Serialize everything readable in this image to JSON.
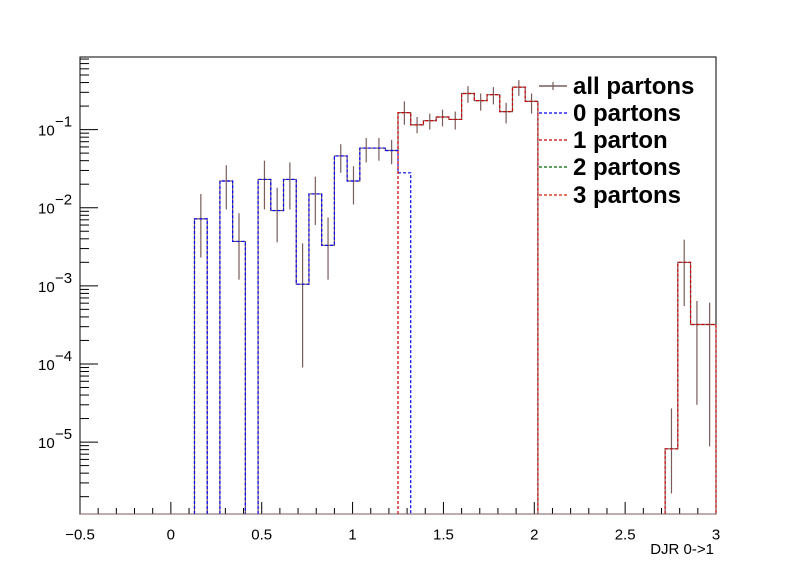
{
  "chart_data": {
    "type": "line",
    "title": "",
    "xlabel": "DJR 0->1",
    "ylabel": "",
    "xlim": [
      -0.5,
      3.0
    ],
    "ylim": [
      1.2e-06,
      0.85
    ],
    "y_log_scale": true,
    "grid": false,
    "legend_position": "top-right",
    "x_tick_labels": [
      "−0.5",
      "0",
      "0.5",
      "1",
      "1.5",
      "2",
      "2.5",
      "3"
    ],
    "y_tick_labels": [
      {
        "base": "10",
        "exp": "−1"
      },
      {
        "base": "10",
        "exp": "−2"
      },
      {
        "base": "10",
        "exp": "−3"
      },
      {
        "base": "10",
        "exp": "−4"
      },
      {
        "base": "10",
        "exp": "−5"
      }
    ],
    "bin_width": 0.07,
    "series": [
      {
        "name": "all partons",
        "color": "#7a5c5c",
        "style": "solid",
        "points": [
          {
            "x": 0.165,
            "y": 0.0072,
            "err": [
              0.0023,
              0.015
            ]
          },
          {
            "x": 0.305,
            "y": 0.022,
            "err": [
              0.0095,
              0.035
            ]
          },
          {
            "x": 0.375,
            "y": 0.0037,
            "err": [
              0.0012,
              0.0085
            ]
          },
          {
            "x": 0.515,
            "y": 0.023,
            "err": [
              0.0095,
              0.04
            ]
          },
          {
            "x": 0.585,
            "y": 0.0092,
            "err": [
              0.0036,
              0.018
            ]
          },
          {
            "x": 0.655,
            "y": 0.023,
            "err": [
              0.0095,
              0.038
            ]
          },
          {
            "x": 0.725,
            "y": 0.00105,
            "err": [
              9e-05,
              0.0035
            ]
          },
          {
            "x": 0.795,
            "y": 0.015,
            "err": [
              0.006,
              0.025
            ]
          },
          {
            "x": 0.865,
            "y": 0.0033,
            "err": [
              0.0012,
              0.0075
            ]
          },
          {
            "x": 0.935,
            "y": 0.046,
            "err": [
              0.028,
              0.065
            ]
          },
          {
            "x": 1.005,
            "y": 0.022,
            "err": [
              0.011,
              0.034
            ]
          },
          {
            "x": 1.075,
            "y": 0.058,
            "err": [
              0.038,
              0.078
            ]
          },
          {
            "x": 1.145,
            "y": 0.058,
            "err": [
              0.04,
              0.078
            ]
          },
          {
            "x": 1.215,
            "y": 0.054,
            "err": [
              0.036,
              0.074
            ]
          },
          {
            "x": 1.285,
            "y": 0.165,
            "err": [
              0.115,
              0.23
            ]
          },
          {
            "x": 1.355,
            "y": 0.115,
            "err": [
              0.09,
              0.145
            ]
          },
          {
            "x": 1.425,
            "y": 0.13,
            "err": [
              0.1,
              0.16
            ]
          },
          {
            "x": 1.495,
            "y": 0.145,
            "err": [
              0.11,
              0.18
            ]
          },
          {
            "x": 1.565,
            "y": 0.135,
            "err": [
              0.1,
              0.17
            ]
          },
          {
            "x": 1.635,
            "y": 0.29,
            "err": [
              0.22,
              0.36
            ]
          },
          {
            "x": 1.705,
            "y": 0.235,
            "err": [
              0.175,
              0.29
            ]
          },
          {
            "x": 1.775,
            "y": 0.28,
            "err": [
              0.21,
              0.35
            ]
          },
          {
            "x": 1.845,
            "y": 0.17,
            "err": [
              0.12,
              0.22
            ]
          },
          {
            "x": 1.915,
            "y": 0.35,
            "err": [
              0.27,
              0.43
            ]
          },
          {
            "x": 1.985,
            "y": 0.23,
            "err": [
              0.16,
              0.29
            ]
          },
          {
            "x": 2.755,
            "y": 8.2e-06,
            "err": [
              2.2e-06,
              2.7e-05
            ]
          },
          {
            "x": 2.825,
            "y": 0.002,
            "err": [
              0.00055,
              0.0039
            ]
          },
          {
            "x": 2.895,
            "y": 0.00032,
            "err": [
              3e-05,
              0.00064
            ]
          },
          {
            "x": 2.965,
            "y": 0.00032,
            "err": [
              8.8e-06,
              0.00061
            ]
          }
        ]
      },
      {
        "name": "0 partons",
        "color": "#0000ff",
        "style": "dashed",
        "points": [
          {
            "x": 0.165,
            "y": 0.0072
          },
          {
            "x": 0.305,
            "y": 0.022
          },
          {
            "x": 0.375,
            "y": 0.0037
          },
          {
            "x": 0.515,
            "y": 0.023
          },
          {
            "x": 0.585,
            "y": 0.0092
          },
          {
            "x": 0.655,
            "y": 0.023
          },
          {
            "x": 0.725,
            "y": 0.00105
          },
          {
            "x": 0.795,
            "y": 0.015
          },
          {
            "x": 0.865,
            "y": 0.0033
          },
          {
            "x": 0.935,
            "y": 0.046
          },
          {
            "x": 1.005,
            "y": 0.022
          },
          {
            "x": 1.075,
            "y": 0.058
          },
          {
            "x": 1.145,
            "y": 0.058
          },
          {
            "x": 1.215,
            "y": 0.054
          },
          {
            "x": 1.285,
            "y": 0.028
          }
        ]
      },
      {
        "name": "1 parton",
        "color": "#cc0000",
        "style": "dashed",
        "points": [
          {
            "x": 1.285,
            "y": 0.165
          },
          {
            "x": 1.355,
            "y": 0.115
          },
          {
            "x": 1.425,
            "y": 0.13
          },
          {
            "x": 1.495,
            "y": 0.145
          },
          {
            "x": 1.565,
            "y": 0.135
          },
          {
            "x": 1.635,
            "y": 0.29
          },
          {
            "x": 1.705,
            "y": 0.235
          },
          {
            "x": 1.775,
            "y": 0.28
          },
          {
            "x": 1.845,
            "y": 0.17
          },
          {
            "x": 1.915,
            "y": 0.35
          },
          {
            "x": 1.985,
            "y": 0.23
          },
          {
            "x": 2.755,
            "y": 8.2e-06
          },
          {
            "x": 2.825,
            "y": 0.002
          },
          {
            "x": 2.895,
            "y": 0.00032
          },
          {
            "x": 2.965,
            "y": 0.00032
          }
        ]
      },
      {
        "name": "2 partons",
        "color": "#006400",
        "style": "dashed",
        "points": []
      },
      {
        "name": "3 partons",
        "color": "#cc2200",
        "style": "dashed",
        "points": []
      }
    ]
  }
}
